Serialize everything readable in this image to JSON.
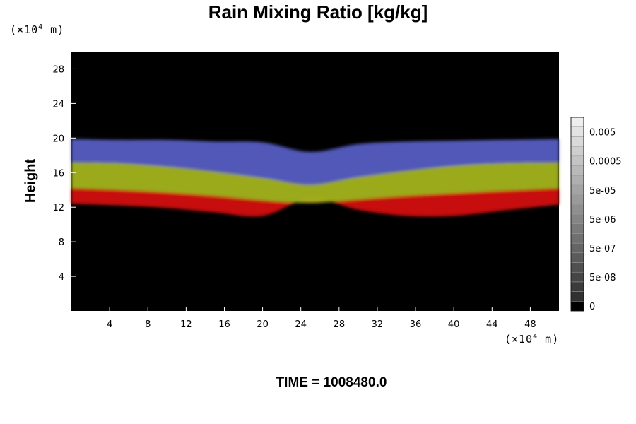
{
  "chart_data": {
    "type": "heatmap",
    "title": "Rain Mixing Ratio [kg/kg]",
    "ylabel": "Height",
    "xlabel": "",
    "x_unit": {
      "prefix": "(×10",
      "exp": "4",
      "suffix": " m)"
    },
    "y_unit": {
      "prefix": "(×10",
      "exp": "4",
      "suffix": " m)"
    },
    "footer": "TIME = 1008480.0",
    "xlim": [
      0,
      51
    ],
    "ylim": [
      0,
      30
    ],
    "x_ticks": [
      4,
      8,
      12,
      16,
      20,
      24,
      28,
      32,
      36,
      40,
      44,
      48
    ],
    "y_ticks": [
      4,
      8,
      12,
      16,
      20,
      24,
      28
    ],
    "grid": false,
    "colorbar": {
      "placement": "right",
      "labels": [
        "0.005",
        "0.0005",
        "5e-05",
        "5e-06",
        "5e-07",
        "5e-08",
        "0"
      ],
      "levels": 20
    },
    "layers": [
      {
        "color": "#d81010",
        "upper_edge_height": [
          14.2,
          14.0,
          13.7,
          13.3,
          12.8,
          12.5,
          12.9,
          13.3,
          13.6,
          13.9,
          14.2
        ],
        "lower_edge_height": [
          12.4,
          12.2,
          11.9,
          11.4,
          11.0,
          13.0,
          11.7,
          11.0,
          11.0,
          11.6,
          12.3
        ]
      },
      {
        "color": "#a8b820",
        "upper_edge_height": [
          17.2,
          17.1,
          16.7,
          16.1,
          15.4,
          14.6,
          15.5,
          16.2,
          16.8,
          17.1,
          17.2
        ],
        "lower_edge_height": [
          14.2,
          14.0,
          13.7,
          13.3,
          12.8,
          12.5,
          12.9,
          13.3,
          13.6,
          13.9,
          14.2
        ]
      },
      {
        "color": "#5860c8",
        "upper_edge_height": [
          19.9,
          19.8,
          19.8,
          19.6,
          19.5,
          18.4,
          19.3,
          19.6,
          19.7,
          19.8,
          19.9
        ],
        "lower_edge_height": [
          17.2,
          17.1,
          16.7,
          16.1,
          15.4,
          14.6,
          15.5,
          16.2,
          16.8,
          17.1,
          17.2
        ]
      }
    ],
    "layer_x": [
      0,
      5,
      10,
      15,
      20,
      25,
      30,
      35,
      40,
      45,
      51
    ],
    "colors": {
      "background": "#000000",
      "page": "#ffffff"
    }
  }
}
